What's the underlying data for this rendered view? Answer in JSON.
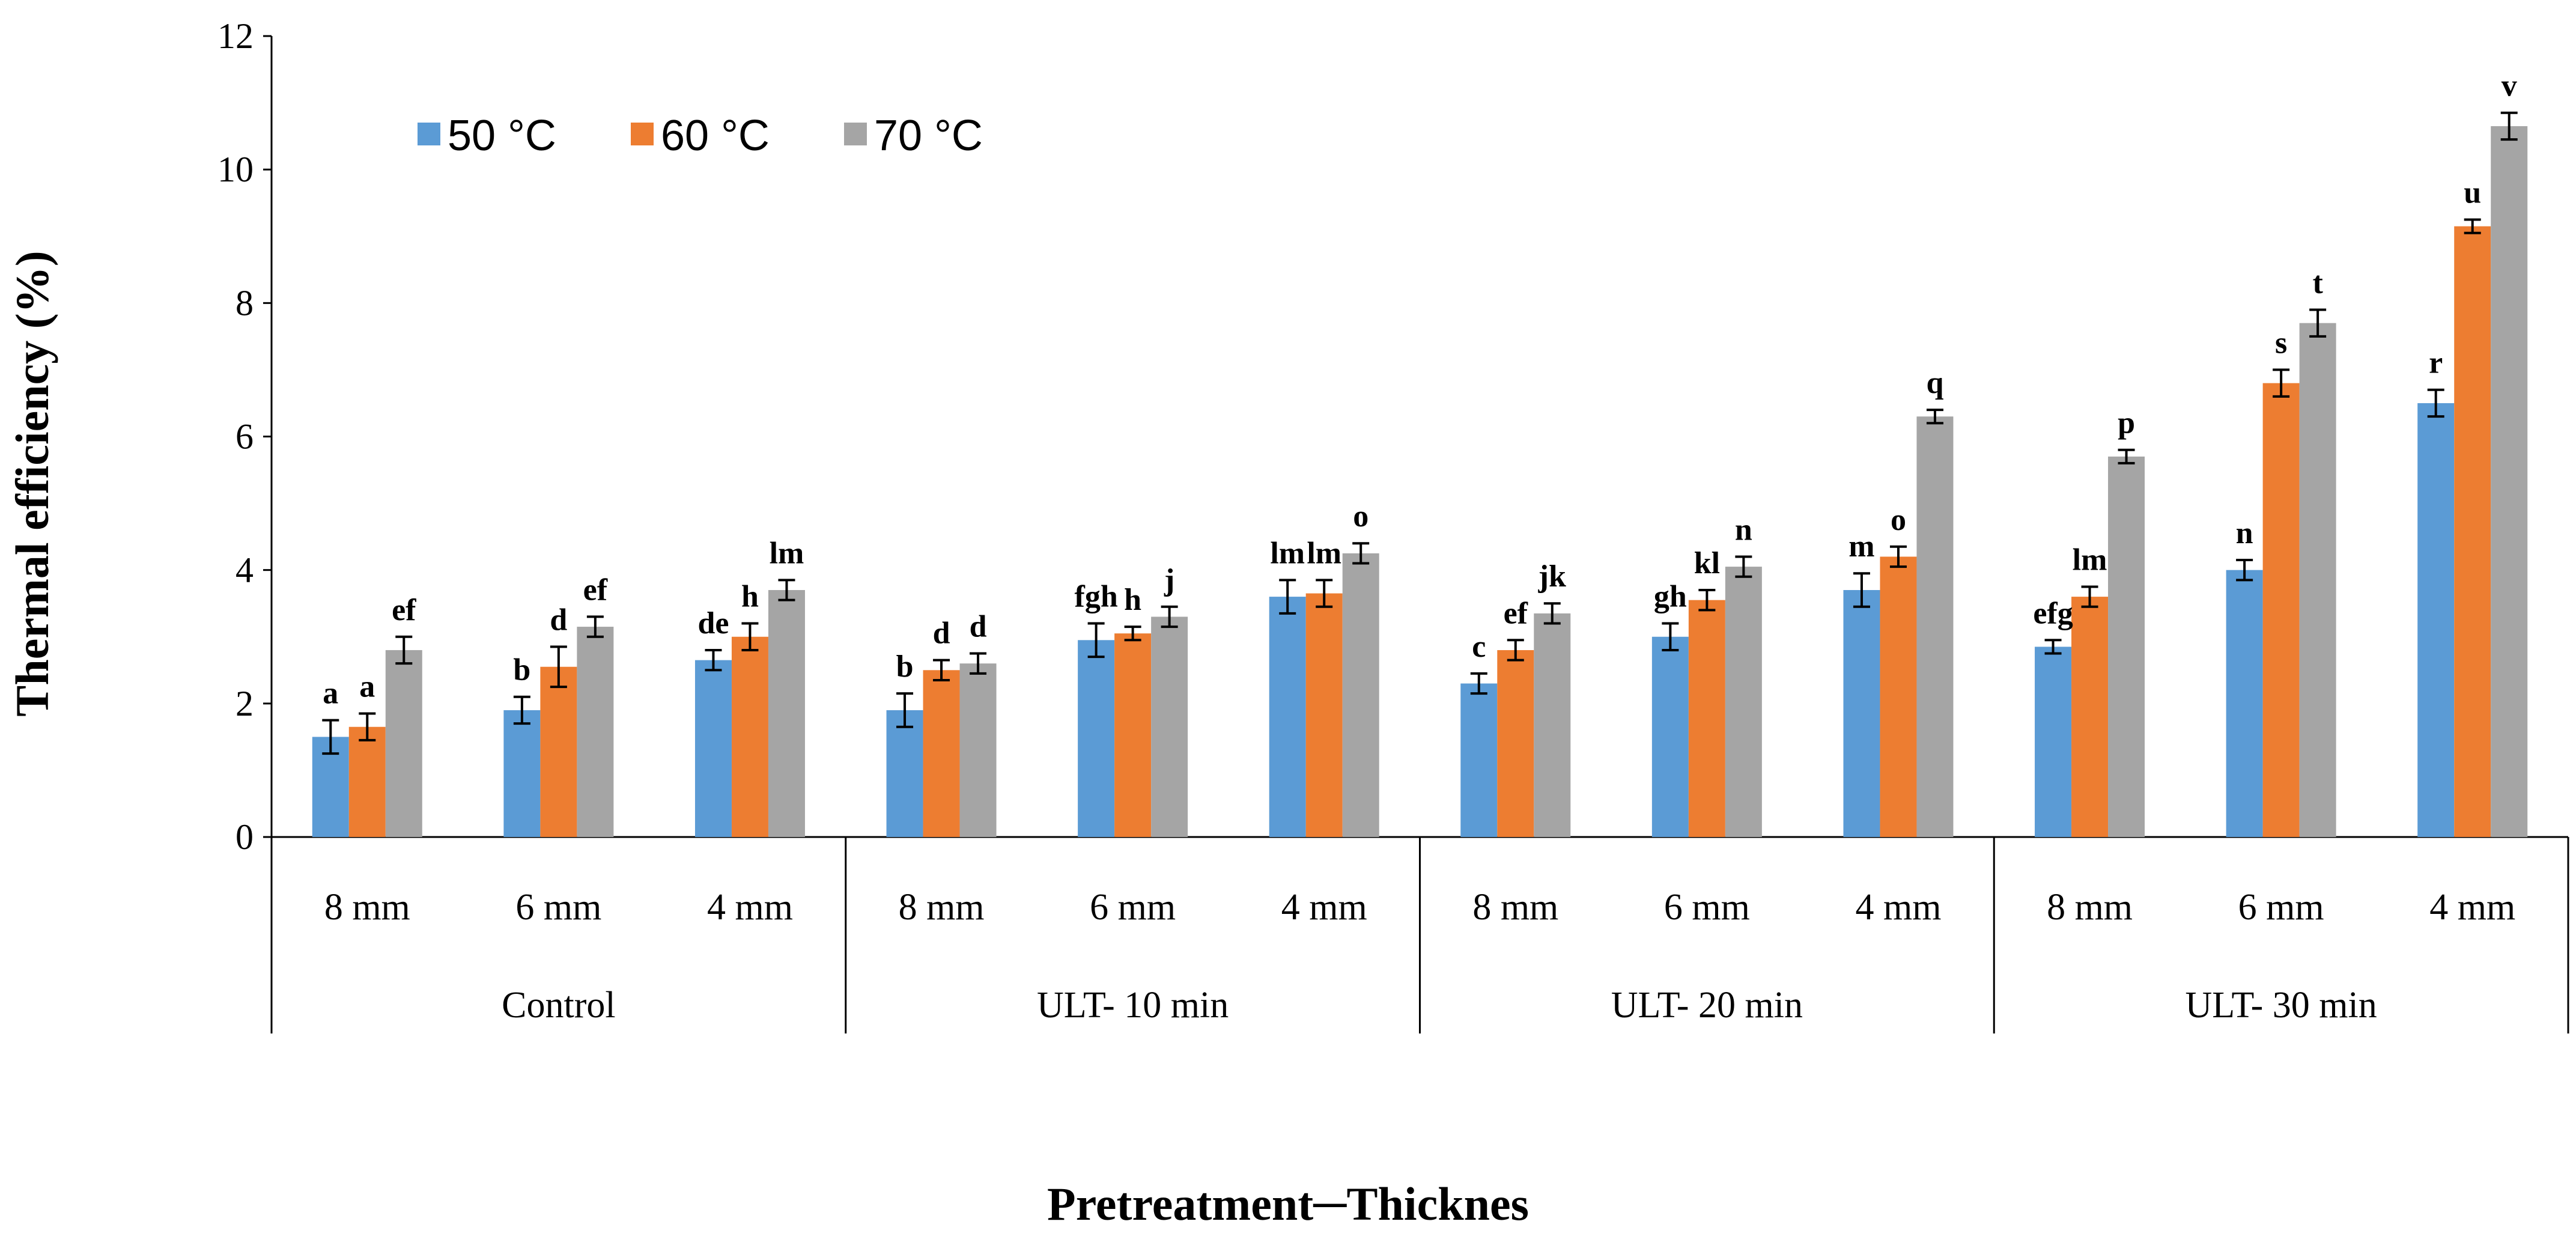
{
  "chart_data": {
    "type": "bar",
    "title": "",
    "ylabel": "Thermal efficiency (%)",
    "xlabel": "Pretreatment─Thicknes",
    "ylim": [
      0,
      12
    ],
    "yticks": [
      "0",
      "2",
      "4",
      "6",
      "8",
      "10",
      "12"
    ],
    "groups": [
      {
        "name": "Control",
        "categories": [
          "8 mm",
          "6 mm",
          "4 mm"
        ]
      },
      {
        "name": "ULT- 10 min",
        "categories": [
          "8 mm",
          "6 mm",
          "4 mm"
        ]
      },
      {
        "name": "ULT- 20 min",
        "categories": [
          "8 mm",
          "6 mm",
          "4 mm"
        ]
      },
      {
        "name": "ULT- 30 min",
        "categories": [
          "8 mm",
          "6 mm",
          "4 mm"
        ]
      }
    ],
    "legend": {
      "position": "top-left"
    },
    "series": [
      {
        "name": "50 °C",
        "color": "#5b9bd5",
        "values": [
          1.5,
          1.9,
          2.65,
          1.9,
          2.95,
          3.6,
          2.3,
          3.0,
          3.7,
          2.85,
          4.0,
          6.5
        ],
        "errors": [
          0.25,
          0.2,
          0.15,
          0.25,
          0.25,
          0.25,
          0.15,
          0.2,
          0.25,
          0.1,
          0.15,
          0.2
        ],
        "labels": [
          "a",
          "b",
          "de",
          "b",
          "fgh",
          "lm",
          "c",
          "gh",
          "m",
          "efg",
          "n",
          "r"
        ]
      },
      {
        "name": "60 °C",
        "color": "#ed7d31",
        "values": [
          1.65,
          2.55,
          3.0,
          2.5,
          3.05,
          3.65,
          2.8,
          3.55,
          4.2,
          3.6,
          6.8,
          9.15
        ],
        "errors": [
          0.2,
          0.3,
          0.2,
          0.15,
          0.1,
          0.2,
          0.15,
          0.15,
          0.15,
          0.15,
          0.2,
          0.1
        ],
        "labels": [
          "a",
          "d",
          "h",
          "d",
          "h",
          "lm",
          "ef",
          "kl",
          "o",
          "lm",
          "s",
          "u"
        ]
      },
      {
        "name": "70 °C",
        "color": "#a5a5a5",
        "values": [
          2.8,
          3.15,
          3.7,
          2.6,
          3.3,
          4.25,
          3.35,
          4.05,
          6.3,
          5.7,
          7.7,
          10.65
        ],
        "errors": [
          0.2,
          0.15,
          0.15,
          0.15,
          0.15,
          0.15,
          0.15,
          0.15,
          0.1,
          0.1,
          0.2,
          0.2
        ],
        "labels": [
          "ef",
          "ef",
          "lm",
          "d",
          "j",
          "o",
          "jk",
          "n",
          "q",
          "p",
          "t",
          "v"
        ]
      }
    ]
  }
}
